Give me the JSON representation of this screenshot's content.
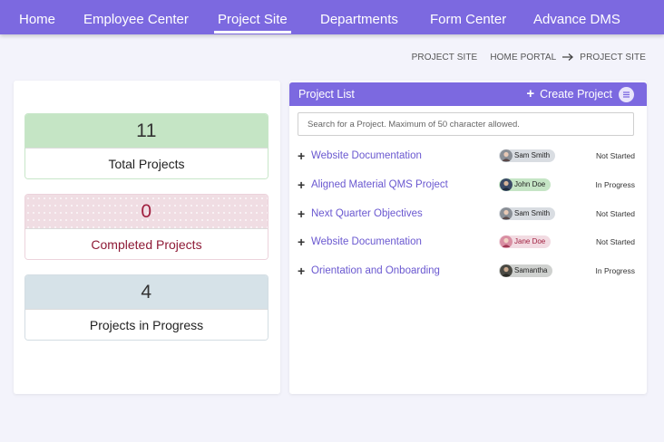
{
  "nav": {
    "items": [
      {
        "label": "Home"
      },
      {
        "label": "Employee Center"
      },
      {
        "label": "Project Site"
      },
      {
        "label": "Departments"
      },
      {
        "label": "Form Center"
      },
      {
        "label": "Advance DMS"
      }
    ],
    "active": "Project Site"
  },
  "breadcrumb": {
    "current": "PROJECT SITE",
    "parent": "HOME PORTAL",
    "target": "PROJECT SITE"
  },
  "stats": {
    "total": {
      "value": "11",
      "label": "Total Projects"
    },
    "completed": {
      "value": "0",
      "label": "Completed Projects"
    },
    "in_progress": {
      "value": "4",
      "label": "Projects in Progress"
    }
  },
  "project_list": {
    "title": "Project List",
    "create_label": "Create Project",
    "search_placeholder": "Search for a Project. Maximum of 50 character allowed.",
    "projects": [
      {
        "name": "Website Documentation",
        "user": "Sam Smith",
        "status": "Not Started"
      },
      {
        "name": "Aligned Material QMS Project",
        "user": "John Doe",
        "status": "In Progress"
      },
      {
        "name": "Next Quarter Objectives",
        "user": "Sam Smith",
        "status": "Not Started"
      },
      {
        "name": "Website Documentation",
        "user": "Jane Doe",
        "status": "Not Started"
      },
      {
        "name": "Orientation and Onboarding",
        "user": "Samantha",
        "status": "In Progress"
      }
    ]
  },
  "colors": {
    "brand": "#7c69e0",
    "completed_text": "#a01f3f",
    "total_bg": "#c5e5c5",
    "progress_bg": "#d6e2e8"
  }
}
